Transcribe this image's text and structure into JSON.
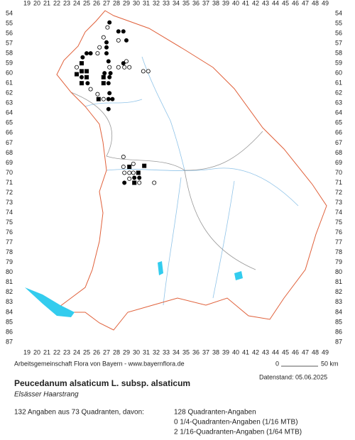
{
  "map": {
    "x_labels": [
      "19",
      "20",
      "21",
      "22",
      "23",
      "24",
      "25",
      "26",
      "27",
      "28",
      "29",
      "30",
      "31",
      "32",
      "33",
      "34",
      "35",
      "36",
      "37",
      "38",
      "39",
      "40",
      "41",
      "42",
      "43",
      "44",
      "45",
      "46",
      "47",
      "48",
      "49"
    ],
    "y_labels": [
      "54",
      "55",
      "56",
      "57",
      "58",
      "59",
      "60",
      "61",
      "62",
      "63",
      "64",
      "65",
      "66",
      "67",
      "68",
      "69",
      "70",
      "71",
      "72",
      "73",
      "74",
      "75",
      "76",
      "77",
      "78",
      "79",
      "80",
      "81",
      "82",
      "83",
      "84",
      "85",
      "86",
      "87"
    ],
    "markers": [
      {
        "col": 27.1,
        "row": 55.4,
        "symbol": "open-circle"
      },
      {
        "col": 27.3,
        "row": 54.9,
        "symbol": "filled-circle"
      },
      {
        "col": 28.2,
        "row": 55.8,
        "symbol": "filled-circle"
      },
      {
        "col": 28.7,
        "row": 55.8,
        "symbol": "filled-circle"
      },
      {
        "col": 29.0,
        "row": 56.7,
        "symbol": "filled-circle"
      },
      {
        "col": 28.2,
        "row": 56.7,
        "symbol": "open-circle"
      },
      {
        "col": 26.7,
        "row": 56.4,
        "symbol": "open-circle"
      },
      {
        "col": 27.0,
        "row": 56.9,
        "symbol": "filled-circle"
      },
      {
        "col": 26.3,
        "row": 57.4,
        "symbol": "open-circle"
      },
      {
        "col": 27.0,
        "row": 57.4,
        "symbol": "filled-circle"
      },
      {
        "col": 27.0,
        "row": 58.0,
        "symbol": "filled-circle"
      },
      {
        "col": 26.1,
        "row": 58.0,
        "symbol": "open-circle"
      },
      {
        "col": 25.4,
        "row": 58.0,
        "symbol": "filled-circle"
      },
      {
        "col": 25.0,
        "row": 58.0,
        "symbol": "filled-circle"
      },
      {
        "col": 24.6,
        "row": 58.4,
        "symbol": "filled-circle"
      },
      {
        "col": 24.5,
        "row": 59.0,
        "symbol": "filled-square"
      },
      {
        "col": 24.0,
        "row": 59.4,
        "symbol": "open-circle"
      },
      {
        "col": 24.5,
        "row": 59.8,
        "symbol": "filled-square"
      },
      {
        "col": 25.0,
        "row": 59.8,
        "symbol": "filled-square"
      },
      {
        "col": 24.0,
        "row": 60.1,
        "symbol": "filled-square"
      },
      {
        "col": 24.5,
        "row": 60.4,
        "symbol": "filled-circle"
      },
      {
        "col": 25.0,
        "row": 60.4,
        "symbol": "filled-square"
      },
      {
        "col": 24.5,
        "row": 61.0,
        "symbol": "filled-square"
      },
      {
        "col": 25.1,
        "row": 61.0,
        "symbol": "filled-circle"
      },
      {
        "col": 25.4,
        "row": 61.6,
        "symbol": "open-circle"
      },
      {
        "col": 26.1,
        "row": 62.1,
        "symbol": "open-circle"
      },
      {
        "col": 26.2,
        "row": 62.6,
        "symbol": "filled-square"
      },
      {
        "col": 26.7,
        "row": 62.6,
        "symbol": "open-circle"
      },
      {
        "col": 27.2,
        "row": 62.6,
        "symbol": "filled-circle"
      },
      {
        "col": 27.6,
        "row": 62.6,
        "symbol": "filled-circle"
      },
      {
        "col": 27.3,
        "row": 62.0,
        "symbol": "filled-circle"
      },
      {
        "col": 27.2,
        "row": 63.6,
        "symbol": "filled-circle"
      },
      {
        "col": 26.7,
        "row": 61.0,
        "symbol": "filled-square"
      },
      {
        "col": 27.2,
        "row": 61.0,
        "symbol": "filled-circle"
      },
      {
        "col": 26.7,
        "row": 60.4,
        "symbol": "filled-square"
      },
      {
        "col": 27.3,
        "row": 60.4,
        "symbol": "filled-circle"
      },
      {
        "col": 26.8,
        "row": 60.0,
        "symbol": "filled-circle"
      },
      {
        "col": 27.4,
        "row": 60.0,
        "symbol": "filled-circle"
      },
      {
        "col": 27.3,
        "row": 59.4,
        "symbol": "open-circle"
      },
      {
        "col": 27.2,
        "row": 58.8,
        "symbol": "filled-circle"
      },
      {
        "col": 28.2,
        "row": 59.4,
        "symbol": "open-circle"
      },
      {
        "col": 28.8,
        "row": 59.4,
        "symbol": "open-circle"
      },
      {
        "col": 29.3,
        "row": 59.4,
        "symbol": "open-circle"
      },
      {
        "col": 28.7,
        "row": 59.0,
        "symbol": "filled-circle"
      },
      {
        "col": 29.0,
        "row": 58.8,
        "symbol": "open-circle"
      },
      {
        "col": 30.7,
        "row": 59.8,
        "symbol": "open-circle"
      },
      {
        "col": 31.2,
        "row": 59.8,
        "symbol": "open-circle"
      },
      {
        "col": 28.7,
        "row": 68.4,
        "symbol": "open-circle"
      },
      {
        "col": 28.7,
        "row": 69.4,
        "symbol": "open-circle"
      },
      {
        "col": 29.3,
        "row": 69.4,
        "symbol": "filled-square"
      },
      {
        "col": 29.7,
        "row": 69.1,
        "symbol": "open-circle"
      },
      {
        "col": 30.8,
        "row": 69.3,
        "symbol": "filled-square"
      },
      {
        "col": 28.8,
        "row": 70.0,
        "symbol": "open-circle"
      },
      {
        "col": 29.3,
        "row": 70.0,
        "symbol": "open-circle"
      },
      {
        "col": 29.7,
        "row": 70.0,
        "symbol": "open-circle"
      },
      {
        "col": 30.2,
        "row": 70.0,
        "symbol": "filled-square"
      },
      {
        "col": 29.8,
        "row": 70.5,
        "symbol": "filled-circle"
      },
      {
        "col": 30.3,
        "row": 70.5,
        "symbol": "filled-circle"
      },
      {
        "col": 29.3,
        "row": 70.6,
        "symbol": "open-circle"
      },
      {
        "col": 28.8,
        "row": 71.0,
        "symbol": "filled-circle"
      },
      {
        "col": 29.8,
        "row": 71.0,
        "symbol": "filled-square"
      },
      {
        "col": 30.3,
        "row": 71.0,
        "symbol": "open-circle"
      },
      {
        "col": 31.8,
        "row": 71.0,
        "symbol": "open-circle"
      }
    ]
  },
  "credit": "Arbeitsgemeinschaft Flora von Bayern - www.bayernflora.de",
  "scale": {
    "start": "0",
    "end": "50 km"
  },
  "date": "Datenstand: 05.06.2025",
  "title": "Peucedanum alsaticum L. subsp. alsaticum",
  "subtitle": "Elsässer Haarstrang",
  "summary": "132 Angaben aus 73 Quadranten, davon:",
  "details": [
    "128 Quadranten-Angaben",
    "0 1/4-Quadranten-Angaben (1/16 MTB)",
    "2 1/16-Quadranten-Angaben (1/64 MTB)"
  ]
}
